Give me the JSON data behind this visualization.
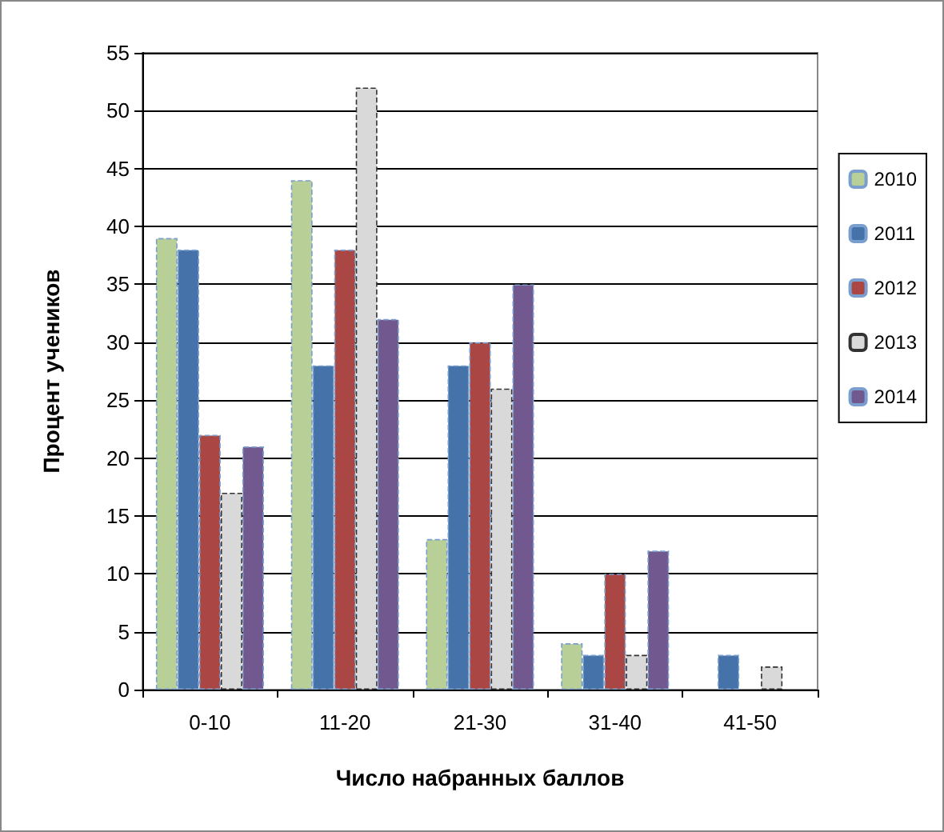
{
  "chart_data": {
    "type": "bar",
    "xlabel": "Число набранных баллов",
    "ylabel": "Процент учеников",
    "categories": [
      "0-10",
      "11-20",
      "21-30",
      "31-40",
      "41-50"
    ],
    "series": [
      {
        "name": "2010",
        "color": "#b8cf98",
        "values": [
          39,
          44,
          13,
          4,
          null
        ]
      },
      {
        "name": "2011",
        "color": "#4573a9",
        "values": [
          38,
          28,
          28,
          3,
          3
        ]
      },
      {
        "name": "2012",
        "color": "#aa4644",
        "values": [
          22,
          38,
          30,
          10,
          null
        ]
      },
      {
        "name": "2013",
        "color": "#d9d9d9",
        "values": [
          17,
          52,
          26,
          3,
          2
        ]
      },
      {
        "name": "2014",
        "color": "#71598f",
        "values": [
          21,
          32,
          35,
          12,
          null
        ]
      }
    ],
    "ylim": [
      0,
      55
    ],
    "yticks": [
      0,
      5,
      10,
      15,
      20,
      25,
      30,
      35,
      40,
      45,
      50,
      55
    ],
    "grid": "y",
    "legend": "right"
  }
}
